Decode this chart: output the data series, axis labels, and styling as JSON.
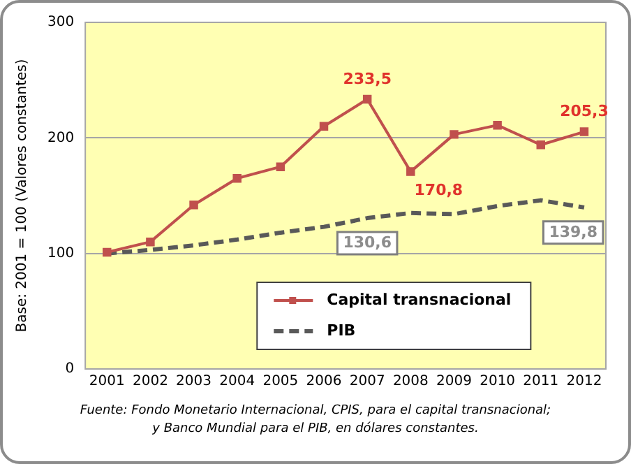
{
  "chart_data": {
    "type": "line",
    "categories": [
      "2001",
      "2002",
      "2003",
      "2004",
      "2005",
      "2006",
      "2007",
      "2008",
      "2009",
      "2010",
      "2011",
      "2012"
    ],
    "series": [
      {
        "name": "Capital transnacional",
        "color": "#c0504d",
        "marker": "square",
        "line_style": "solid",
        "values": [
          101,
          110,
          142,
          165,
          175,
          210,
          233.5,
          170.8,
          203,
          211,
          194,
          205.3
        ],
        "value_labels": [
          null,
          null,
          null,
          null,
          null,
          null,
          "233,5",
          "170,8",
          null,
          null,
          null,
          "205,3"
        ]
      },
      {
        "name": "PIB",
        "color": "#595959",
        "marker": "none",
        "line_style": "dashed",
        "values": [
          100,
          103,
          107,
          112,
          118,
          123,
          130.6,
          135,
          134,
          141,
          146,
          139.8
        ],
        "value_labels": [
          null,
          null,
          null,
          null,
          null,
          null,
          "130,6",
          null,
          null,
          null,
          null,
          "139,8"
        ]
      }
    ],
    "ylabel": "Base: 2001 = 100 (Valores constantes)",
    "ylim": [
      0,
      300
    ],
    "yticks": [
      0,
      100,
      200,
      300
    ],
    "grid": "y",
    "legend": "bottom",
    "annotations": [
      "Fuente: Fondo Monetario Internacional, CPIS, para el capital transnacional;",
      "y Banco Mundial para el PIB, en dólares constantes."
    ]
  }
}
